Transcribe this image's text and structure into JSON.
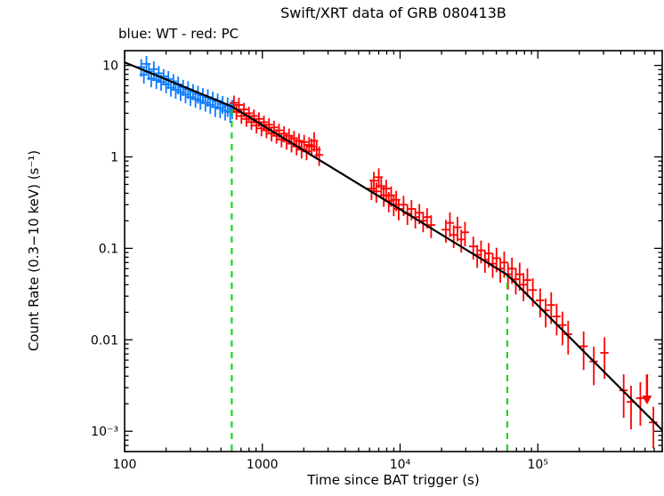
{
  "figure": {
    "title": "Swift/XRT data of GRB 080413B",
    "subtitle": "blue: WT - red: PC",
    "xlabel": "Time since BAT trigger (s)",
    "ylabel": "Count Rate (0.3−10 keV) (s⁻¹)"
  },
  "chart_data": {
    "type": "scatter",
    "title": "Swift/XRT data of GRB 080413B",
    "xlabel": "Time since BAT trigger (s)",
    "ylabel": "Count Rate (0.3−10 keV) (s⁻¹)",
    "xscale": "log",
    "yscale": "log",
    "grid": false,
    "xlim": [
      100,
      800000
    ],
    "ylim": [
      0.0006,
      14.5
    ],
    "legend": {
      "text": "blue: WT - red: PC",
      "position": "top-left"
    },
    "x_ticks": [
      {
        "v": 100,
        "label": "100"
      },
      {
        "v": 1000,
        "label": "1000"
      },
      {
        "v": 10000,
        "label": "10⁴"
      },
      {
        "v": 100000,
        "label": "10⁵"
      }
    ],
    "y_ticks": [
      {
        "v": 10,
        "label": "10"
      },
      {
        "v": 1,
        "label": "1"
      },
      {
        "v": 0.1,
        "label": "0.1"
      },
      {
        "v": 0.01,
        "label": "0.01"
      },
      {
        "v": 0.001,
        "label": "10⁻³"
      }
    ],
    "series": [
      {
        "name": "WT",
        "color": "#0a7bff",
        "points": [
          [
            132,
            9.6,
            0.22
          ],
          [
            138,
            7.9,
            0.2
          ],
          [
            144,
            10.4,
            0.22
          ],
          [
            150,
            8.6,
            0.2
          ],
          [
            156,
            7.2,
            0.2
          ],
          [
            163,
            9.1,
            0.22
          ],
          [
            170,
            6.9,
            0.2
          ],
          [
            177,
            8.2,
            0.2
          ],
          [
            184,
            6.6,
            0.2
          ],
          [
            192,
            7.6,
            0.2
          ],
          [
            200,
            6.2,
            0.2
          ],
          [
            208,
            7.1,
            0.22
          ],
          [
            217,
            5.7,
            0.2
          ],
          [
            226,
            6.7,
            0.2
          ],
          [
            235,
            5.4,
            0.2
          ],
          [
            245,
            6.2,
            0.22
          ],
          [
            255,
            5.1,
            0.2
          ],
          [
            266,
            5.8,
            0.2
          ],
          [
            277,
            4.8,
            0.2
          ],
          [
            289,
            5.5,
            0.22
          ],
          [
            301,
            4.5,
            0.2
          ],
          [
            314,
            5.2,
            0.2
          ],
          [
            327,
            4.3,
            0.2
          ],
          [
            341,
            4.9,
            0.22
          ],
          [
            355,
            4.1,
            0.2
          ],
          [
            370,
            4.7,
            0.2
          ],
          [
            386,
            3.9,
            0.2
          ],
          [
            402,
            4.5,
            0.22
          ],
          [
            419,
            3.7,
            0.2
          ],
          [
            437,
            4.3,
            0.2
          ],
          [
            455,
            3.5,
            0.22
          ],
          [
            474,
            4.1,
            0.2
          ],
          [
            494,
            3.4,
            0.22
          ],
          [
            515,
            3.8,
            0.22
          ],
          [
            537,
            3.2,
            0.22
          ],
          [
            560,
            3.6,
            0.24
          ],
          [
            584,
            3.1,
            0.24
          ],
          [
            604,
            3.4,
            0.24
          ]
        ]
      },
      {
        "name": "PC",
        "color": "#ff0000",
        "points": [
          [
            622,
            3.9,
            0.2
          ],
          [
            648,
            3.1,
            0.18
          ],
          [
            676,
            3.7,
            0.2
          ],
          [
            705,
            2.8,
            0.18
          ],
          [
            735,
            3.3,
            0.18
          ],
          [
            766,
            2.6,
            0.18
          ],
          [
            799,
            3.0,
            0.18
          ],
          [
            833,
            2.4,
            0.18
          ],
          [
            869,
            2.8,
            0.18
          ],
          [
            906,
            2.2,
            0.18
          ],
          [
            945,
            2.6,
            0.18
          ],
          [
            985,
            2.05,
            0.18
          ],
          [
            1027,
            2.4,
            0.18
          ],
          [
            1071,
            1.95,
            0.18
          ],
          [
            1117,
            2.25,
            0.18
          ],
          [
            1165,
            1.8,
            0.18
          ],
          [
            1215,
            2.1,
            0.18
          ],
          [
            1267,
            1.7,
            0.18
          ],
          [
            1321,
            1.95,
            0.18
          ],
          [
            1378,
            1.55,
            0.18
          ],
          [
            1437,
            1.8,
            0.2
          ],
          [
            1498,
            1.5,
            0.2
          ],
          [
            1562,
            1.7,
            0.2
          ],
          [
            1629,
            1.4,
            0.2
          ],
          [
            1699,
            1.6,
            0.2
          ],
          [
            1772,
            1.3,
            0.2
          ],
          [
            1848,
            1.5,
            0.2
          ],
          [
            1927,
            1.2,
            0.2
          ],
          [
            2010,
            1.45,
            0.2
          ],
          [
            2096,
            1.15,
            0.2
          ],
          [
            2186,
            1.35,
            0.22
          ],
          [
            2280,
            1.3,
            0.22
          ],
          [
            2378,
            1.5,
            0.24
          ],
          [
            2480,
            1.2,
            0.22
          ],
          [
            2586,
            1.05,
            0.24
          ],
          [
            6200,
            0.45,
            0.25
          ],
          [
            6450,
            0.55,
            0.25
          ],
          [
            6720,
            0.42,
            0.25
          ],
          [
            7000,
            0.6,
            0.25
          ],
          [
            7300,
            0.48,
            0.25
          ],
          [
            7610,
            0.38,
            0.25
          ],
          [
            7930,
            0.45,
            0.25
          ],
          [
            8270,
            0.33,
            0.25
          ],
          [
            8620,
            0.38,
            0.25
          ],
          [
            8990,
            0.3,
            0.25
          ],
          [
            9370,
            0.34,
            0.25
          ],
          [
            9770,
            0.27,
            0.25
          ],
          [
            10600,
            0.3,
            0.25
          ],
          [
            11300,
            0.24,
            0.25
          ],
          [
            12100,
            0.27,
            0.25
          ],
          [
            12900,
            0.22,
            0.25
          ],
          [
            13800,
            0.245,
            0.25
          ],
          [
            14700,
            0.2,
            0.25
          ],
          [
            15700,
            0.22,
            0.25
          ],
          [
            16800,
            0.18,
            0.28
          ],
          [
            21500,
            0.16,
            0.28
          ],
          [
            23000,
            0.19,
            0.3
          ],
          [
            24500,
            0.14,
            0.28
          ],
          [
            26100,
            0.17,
            0.3
          ],
          [
            27800,
            0.125,
            0.28
          ],
          [
            29600,
            0.15,
            0.3
          ],
          [
            34000,
            0.105,
            0.28
          ],
          [
            36300,
            0.085,
            0.28
          ],
          [
            38700,
            0.095,
            0.28
          ],
          [
            41300,
            0.075,
            0.28
          ],
          [
            44000,
            0.088,
            0.3
          ],
          [
            47000,
            0.068,
            0.3
          ],
          [
            50100,
            0.078,
            0.3
          ],
          [
            53400,
            0.06,
            0.3
          ],
          [
            57000,
            0.07,
            0.32
          ],
          [
            60800,
            0.052,
            0.32
          ],
          [
            64900,
            0.06,
            0.32
          ],
          [
            69200,
            0.046,
            0.32
          ],
          [
            73800,
            0.052,
            0.34
          ],
          [
            78700,
            0.04,
            0.34
          ],
          [
            84000,
            0.045,
            0.34
          ],
          [
            92000,
            0.035,
            0.34
          ],
          [
            104000,
            0.027,
            0.35
          ],
          [
            114000,
            0.021,
            0.35
          ],
          [
            125000,
            0.024,
            0.38
          ],
          [
            137000,
            0.018,
            0.38
          ],
          [
            151000,
            0.0145,
            0.4
          ],
          [
            166000,
            0.0115,
            0.4
          ],
          [
            215000,
            0.0085,
            0.45
          ],
          [
            255000,
            0.0058,
            0.45
          ],
          [
            305000,
            0.0072,
            0.48
          ],
          [
            420000,
            0.0028,
            0.5
          ],
          [
            475000,
            0.0021,
            0.5
          ],
          [
            555000,
            0.0023,
            0.5
          ],
          [
            690000,
            0.00125,
            0.48
          ]
        ]
      }
    ],
    "fit_line": {
      "color": "#000000",
      "vertices": [
        [
          100,
          10.8
        ],
        [
          600,
          3.56
        ],
        [
          60000,
          0.0514
        ],
        [
          800000,
          0.00103
        ]
      ]
    },
    "break_lines": {
      "color": "#00d900",
      "style": "dashed",
      "x_values": [
        600,
        60000
      ]
    },
    "upper_limit": {
      "x": 620000,
      "y": 0.0042,
      "color": "#ff0000"
    }
  }
}
